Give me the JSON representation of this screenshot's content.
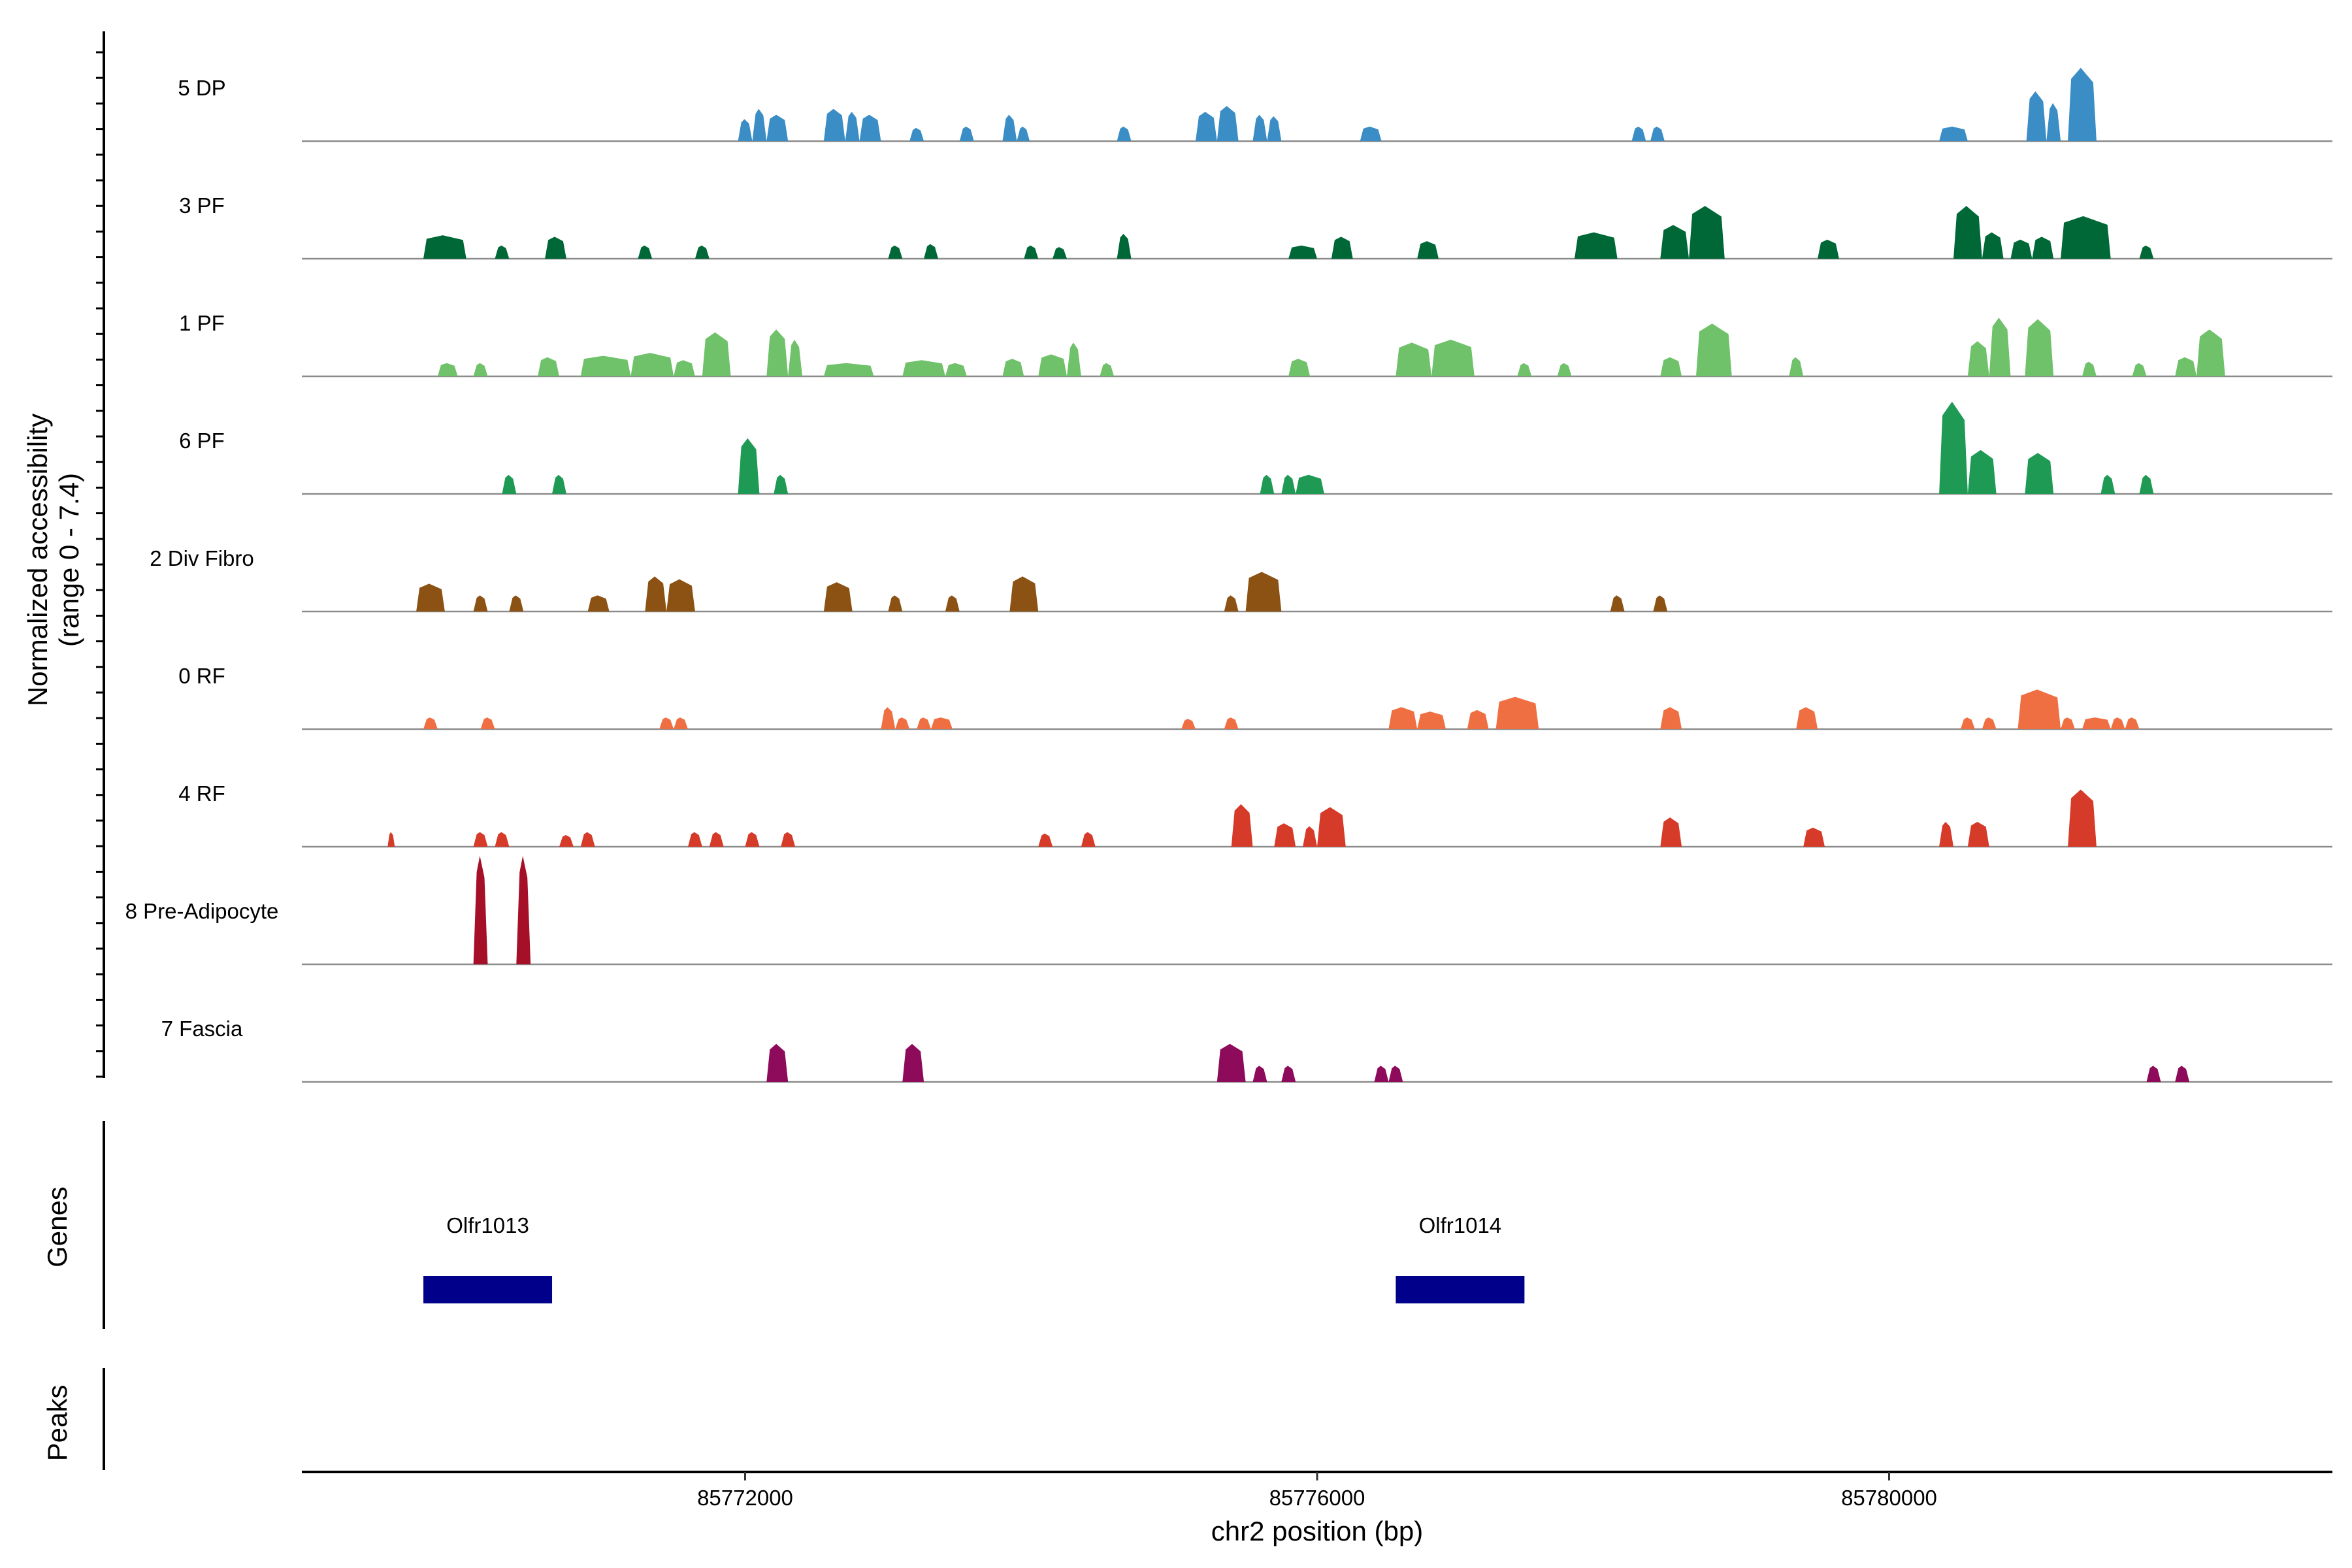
{
  "chart_data": {
    "type": "area",
    "title": "",
    "xlabel": "chr2 position (bp)",
    "ylabel_line1": "Normalized accessibility",
    "ylabel_line2": "(range 0 - 7.4)",
    "y_range": [
      0,
      7.4
    ],
    "xlim": [
      85768900,
      85783100
    ],
    "x_ticks": [
      85772000,
      85776000,
      85780000
    ],
    "x_tick_labels": [
      "85772000",
      "85776000",
      "85780000"
    ],
    "panel_labels": {
      "genes": "Genes",
      "peaks": "Peaks"
    },
    "tracks": [
      {
        "name": "5 DP",
        "color": "#3a8dc5",
        "peaks": [
          [
            85771950,
            85772050,
            1.5
          ],
          [
            85772050,
            85772150,
            2.2
          ],
          [
            85772150,
            85772300,
            1.8
          ],
          [
            85772550,
            85772700,
            2.2
          ],
          [
            85772700,
            85772800,
            2.0
          ],
          [
            85772800,
            85772950,
            1.8
          ],
          [
            85773150,
            85773250,
            0.9
          ],
          [
            85773500,
            85773600,
            1.0
          ],
          [
            85773800,
            85773900,
            1.8
          ],
          [
            85773900,
            85773990,
            1.0
          ],
          [
            85774600,
            85774700,
            1.0
          ],
          [
            85775150,
            85775300,
            2.0
          ],
          [
            85775300,
            85775450,
            2.4
          ],
          [
            85775550,
            85775650,
            1.8
          ],
          [
            85775650,
            85775750,
            1.7
          ],
          [
            85776300,
            85776450,
            1.0
          ],
          [
            85778200,
            85778300,
            1.0
          ],
          [
            85778330,
            85778430,
            1.0
          ],
          [
            85780350,
            85780550,
            1.0
          ],
          [
            85780960,
            85781100,
            3.4
          ],
          [
            85781100,
            85781200,
            2.6
          ],
          [
            85781250,
            85781450,
            5.0
          ]
        ]
      },
      {
        "name": "3 PF",
        "color": "#006837",
        "peaks": [
          [
            85769750,
            85770050,
            1.6
          ],
          [
            85770250,
            85770350,
            0.9
          ],
          [
            85770600,
            85770750,
            1.5
          ],
          [
            85771250,
            85771350,
            0.9
          ],
          [
            85771650,
            85771750,
            0.9
          ],
          [
            85773000,
            85773100,
            0.9
          ],
          [
            85773250,
            85773350,
            1.0
          ],
          [
            85773950,
            85774050,
            0.9
          ],
          [
            85774150,
            85774250,
            0.8
          ],
          [
            85774600,
            85774700,
            1.7
          ],
          [
            85775800,
            85776000,
            0.9
          ],
          [
            85776100,
            85776250,
            1.5
          ],
          [
            85776700,
            85776850,
            1.2
          ],
          [
            85777800,
            85778100,
            1.8
          ],
          [
            85778400,
            85778600,
            2.3
          ],
          [
            85778600,
            85778850,
            3.6
          ],
          [
            85779500,
            85779650,
            1.3
          ],
          [
            85780450,
            85780650,
            3.6
          ],
          [
            85780650,
            85780800,
            1.8
          ],
          [
            85780850,
            85781000,
            1.3
          ],
          [
            85781000,
            85781150,
            1.5
          ],
          [
            85781200,
            85781550,
            2.9
          ],
          [
            85781750,
            85781850,
            0.9
          ]
        ]
      },
      {
        "name": "1 PF",
        "color": "#6fc16a",
        "peaks": [
          [
            85769850,
            85769990,
            0.9
          ],
          [
            85770100,
            85770200,
            0.9
          ],
          [
            85770550,
            85770700,
            1.3
          ],
          [
            85770850,
            85771200,
            1.4
          ],
          [
            85771200,
            85771500,
            1.6
          ],
          [
            85771500,
            85771650,
            1.1
          ],
          [
            85771700,
            85771900,
            3.0
          ],
          [
            85772150,
            85772300,
            3.2
          ],
          [
            85772300,
            85772400,
            2.5
          ],
          [
            85772550,
            85772900,
            0.9
          ],
          [
            85773100,
            85773400,
            1.1
          ],
          [
            85773400,
            85773550,
            0.9
          ],
          [
            85773800,
            85773950,
            1.2
          ],
          [
            85774050,
            85774250,
            1.5
          ],
          [
            85774250,
            85774350,
            2.3
          ],
          [
            85774480,
            85774580,
            0.9
          ],
          [
            85775800,
            85775950,
            1.2
          ],
          [
            85776550,
            85776800,
            2.3
          ],
          [
            85776800,
            85777100,
            2.5
          ],
          [
            85777400,
            85777500,
            0.9
          ],
          [
            85777680,
            85777780,
            0.9
          ],
          [
            85778400,
            85778550,
            1.3
          ],
          [
            85778650,
            85778900,
            3.6
          ],
          [
            85779300,
            85779400,
            1.3
          ],
          [
            85780550,
            85780700,
            2.4
          ],
          [
            85780700,
            85780850,
            4.0
          ],
          [
            85780950,
            85781150,
            3.9
          ],
          [
            85781350,
            85781450,
            1.0
          ],
          [
            85781700,
            85781800,
            0.9
          ],
          [
            85782000,
            85782150,
            1.3
          ],
          [
            85782150,
            85782350,
            3.2
          ]
        ]
      },
      {
        "name": "6 PF",
        "color": "#1e9a54",
        "peaks": [
          [
            85770300,
            85770400,
            1.3
          ],
          [
            85770650,
            85770750,
            1.3
          ],
          [
            85771950,
            85772100,
            3.8
          ],
          [
            85772200,
            85772300,
            1.3
          ],
          [
            85775600,
            85775700,
            1.3
          ],
          [
            85775750,
            85775850,
            1.3
          ],
          [
            85775850,
            85776050,
            1.3
          ],
          [
            85780350,
            85780550,
            6.3
          ],
          [
            85780550,
            85780750,
            3.0
          ],
          [
            85780950,
            85781150,
            2.8
          ],
          [
            85781480,
            85781580,
            1.3
          ],
          [
            85781750,
            85781850,
            1.3
          ]
        ]
      },
      {
        "name": "2 Div Fibro",
        "color": "#8b5214",
        "peaks": [
          [
            85769700,
            85769900,
            1.9
          ],
          [
            85770100,
            85770200,
            1.1
          ],
          [
            85770350,
            85770450,
            1.1
          ],
          [
            85770900,
            85771050,
            1.1
          ],
          [
            85771300,
            85771450,
            2.4
          ],
          [
            85771450,
            85771650,
            2.2
          ],
          [
            85772550,
            85772750,
            2.0
          ],
          [
            85773000,
            85773100,
            1.1
          ],
          [
            85773400,
            85773500,
            1.1
          ],
          [
            85773850,
            85774050,
            2.4
          ],
          [
            85775350,
            85775450,
            1.1
          ],
          [
            85775500,
            85775750,
            2.7
          ],
          [
            85778050,
            85778150,
            1.1
          ],
          [
            85778350,
            85778450,
            1.1
          ]
        ]
      },
      {
        "name": "0 RF",
        "color": "#ef6f42",
        "peaks": [
          [
            85769750,
            85769850,
            0.8
          ],
          [
            85770150,
            85770250,
            0.8
          ],
          [
            85771400,
            85771500,
            0.8
          ],
          [
            85771500,
            85771600,
            0.8
          ],
          [
            85772950,
            85773050,
            1.5
          ],
          [
            85773050,
            85773150,
            0.8
          ],
          [
            85773200,
            85773300,
            0.8
          ],
          [
            85773300,
            85773450,
            0.8
          ],
          [
            85775050,
            85775150,
            0.7
          ],
          [
            85775350,
            85775450,
            0.8
          ],
          [
            85776500,
            85776700,
            1.5
          ],
          [
            85776700,
            85776900,
            1.2
          ],
          [
            85777050,
            85777200,
            1.3
          ],
          [
            85777250,
            85777550,
            2.2
          ],
          [
            85778400,
            85778550,
            1.5
          ],
          [
            85779350,
            85779500,
            1.5
          ],
          [
            85780500,
            85780600,
            0.8
          ],
          [
            85780650,
            85780750,
            0.8
          ],
          [
            85780900,
            85781200,
            2.7
          ],
          [
            85781200,
            85781300,
            0.8
          ],
          [
            85781350,
            85781550,
            0.8
          ],
          [
            85781550,
            85781650,
            0.8
          ],
          [
            85781650,
            85781750,
            0.8
          ]
        ]
      },
      {
        "name": "4 RF",
        "color": "#d63a28",
        "peaks": [
          [
            85769500,
            85769550,
            1.0
          ],
          [
            85770100,
            85770200,
            1.0
          ],
          [
            85770250,
            85770350,
            1.0
          ],
          [
            85770700,
            85770800,
            0.8
          ],
          [
            85770850,
            85770950,
            1.0
          ],
          [
            85771600,
            85771700,
            1.0
          ],
          [
            85771750,
            85771850,
            1.0
          ],
          [
            85772000,
            85772100,
            1.0
          ],
          [
            85772250,
            85772350,
            1.0
          ],
          [
            85774050,
            85774150,
            0.9
          ],
          [
            85774350,
            85774450,
            1.0
          ],
          [
            85775400,
            85775550,
            2.9
          ],
          [
            85775700,
            85775850,
            1.6
          ],
          [
            85775900,
            85776000,
            1.4
          ],
          [
            85776000,
            85776200,
            2.7
          ],
          [
            85778400,
            85778550,
            2.0
          ],
          [
            85779400,
            85779550,
            1.3
          ],
          [
            85780350,
            85780450,
            1.7
          ],
          [
            85780550,
            85780700,
            1.7
          ],
          [
            85781250,
            85781450,
            3.9
          ]
        ]
      },
      {
        "name": "8 Pre-Adipocyte",
        "color": "#a50f28",
        "peaks": [
          [
            85770100,
            85770200,
            7.4
          ],
          [
            85770400,
            85770500,
            7.4
          ]
        ]
      },
      {
        "name": "7 Fascia",
        "color": "#8e0a5a",
        "peaks": [
          [
            85772150,
            85772300,
            2.6
          ],
          [
            85773100,
            85773250,
            2.6
          ],
          [
            85775300,
            85775500,
            2.6
          ],
          [
            85775550,
            85775650,
            1.1
          ],
          [
            85775750,
            85775850,
            1.1
          ],
          [
            85776400,
            85776500,
            1.1
          ],
          [
            85776500,
            85776600,
            1.1
          ],
          [
            85781800,
            85781900,
            1.1
          ],
          [
            85782000,
            85782100,
            1.1
          ]
        ]
      }
    ],
    "genes": [
      {
        "name": "Olfr1013",
        "start": 85769750,
        "end": 85770650,
        "color": "#00008b"
      },
      {
        "name": "Olfr1014",
        "start": 85776550,
        "end": 85777450,
        "color": "#00008b"
      }
    ]
  }
}
